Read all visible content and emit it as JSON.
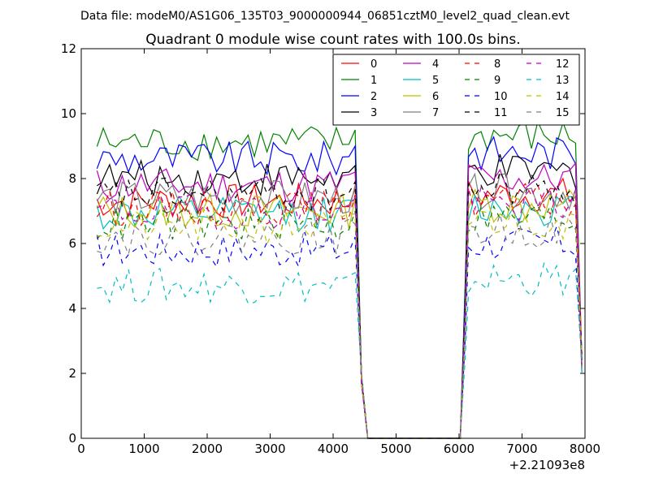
{
  "figure": {
    "suptitle": "Data file: modeM0/AS1G06_135T03_9000000944_06851cztM0_level2_quad_clean.evt",
    "title": "Quadrant 0 module wise count rates with 100.0s bins.",
    "x_offset_label": "+2.21093e8"
  },
  "chart_data": {
    "type": "line",
    "title": "Quadrant 0 module wise count rates with 100.0s bins.",
    "xlabel": "",
    "ylabel": "",
    "xlim": [
      0,
      8000
    ],
    "ylim": [
      0,
      12
    ],
    "xticks": [
      0,
      1000,
      2000,
      3000,
      4000,
      5000,
      6000,
      7000,
      8000
    ],
    "yticks": [
      0,
      2,
      4,
      6,
      8,
      10,
      12
    ],
    "grid": false,
    "legend_placement": "top-right",
    "x_offset": 221093000,
    "gaps": "rates fall to 0 between about 4550 and 6020",
    "series": [
      {
        "name": "0",
        "color": "#ff0000",
        "dash": "solid",
        "level": 7.3
      },
      {
        "name": "1",
        "color": "#008000",
        "dash": "solid",
        "level": 9.1
      },
      {
        "name": "2",
        "color": "#0000ff",
        "dash": "solid",
        "level": 8.6
      },
      {
        "name": "3",
        "color": "#000000",
        "dash": "solid",
        "level": 8.0
      },
      {
        "name": "4",
        "color": "#bf00bf",
        "dash": "solid",
        "level": 7.8
      },
      {
        "name": "5",
        "color": "#00bfbf",
        "dash": "solid",
        "level": 6.9
      },
      {
        "name": "6",
        "color": "#bfbf00",
        "dash": "solid",
        "level": 7.0
      },
      {
        "name": "7",
        "color": "#808080",
        "dash": "solid",
        "level": 7.4
      },
      {
        "name": "8",
        "color": "#ff0000",
        "dash": "dashed",
        "level": 7.1
      },
      {
        "name": "9",
        "color": "#008000",
        "dash": "dashed",
        "level": 6.6
      },
      {
        "name": "10",
        "color": "#0000ff",
        "dash": "dashed",
        "level": 5.8
      },
      {
        "name": "11",
        "color": "#000000",
        "dash": "dashed",
        "level": 7.5
      },
      {
        "name": "12",
        "color": "#bf00bf",
        "dash": "dashed",
        "level": 7.0
      },
      {
        "name": "13",
        "color": "#00bfbf",
        "dash": "dashed",
        "level": 4.7
      },
      {
        "name": "14",
        "color": "#bfbf00",
        "dash": "dashed",
        "level": 6.5
      },
      {
        "name": "15",
        "color": "#808080",
        "dash": "dashed",
        "level": 6.2
      }
    ]
  }
}
